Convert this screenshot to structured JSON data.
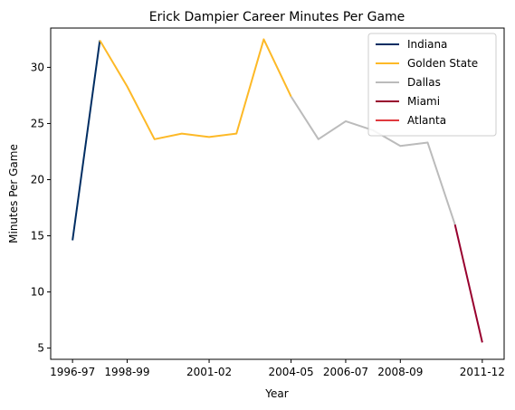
{
  "chart_data": {
    "type": "line",
    "title": "Erick Dampier Career Minutes Per Game",
    "xlabel": "Year",
    "ylabel": "Minutes Per Game",
    "x_tick_labels": [
      "1996-97",
      "1998-99",
      "2001-02",
      "2004-05",
      "2006-07",
      "2008-09",
      "2011-12"
    ],
    "x_tick_index": [
      0,
      2,
      5,
      8,
      10,
      12,
      15
    ],
    "y_ticks": [
      5,
      10,
      15,
      20,
      25,
      30
    ],
    "ylim": [
      4,
      33.5
    ],
    "xlim": [
      -0.8,
      15.8
    ],
    "grid": false,
    "legend_placement": "top-right",
    "series": [
      {
        "name": "Indiana",
        "color": "#002d62",
        "points": [
          [
            0,
            14.6
          ],
          [
            1,
            32.4
          ]
        ]
      },
      {
        "name": "Golden State",
        "color": "#fdb927",
        "points": [
          [
            1,
            32.4
          ],
          [
            2,
            28.3
          ],
          [
            3,
            23.6
          ],
          [
            4,
            24.1
          ],
          [
            5,
            23.8
          ],
          [
            6,
            24.1
          ],
          [
            7,
            32.5
          ],
          [
            8,
            27.4
          ]
        ]
      },
      {
        "name": "Dallas",
        "color": "#bbbbbb",
        "points": [
          [
            8,
            27.4
          ],
          [
            9,
            23.6
          ],
          [
            10,
            25.2
          ],
          [
            11,
            24.4
          ],
          [
            12,
            23.0
          ],
          [
            13,
            23.3
          ],
          [
            14,
            16.0
          ]
        ]
      },
      {
        "name": "Miami",
        "color": "#98002e",
        "points": [
          [
            14,
            16.0
          ],
          [
            15,
            5.5
          ]
        ]
      },
      {
        "name": "Atlanta",
        "color": "#e03a3e",
        "points": []
      }
    ]
  }
}
